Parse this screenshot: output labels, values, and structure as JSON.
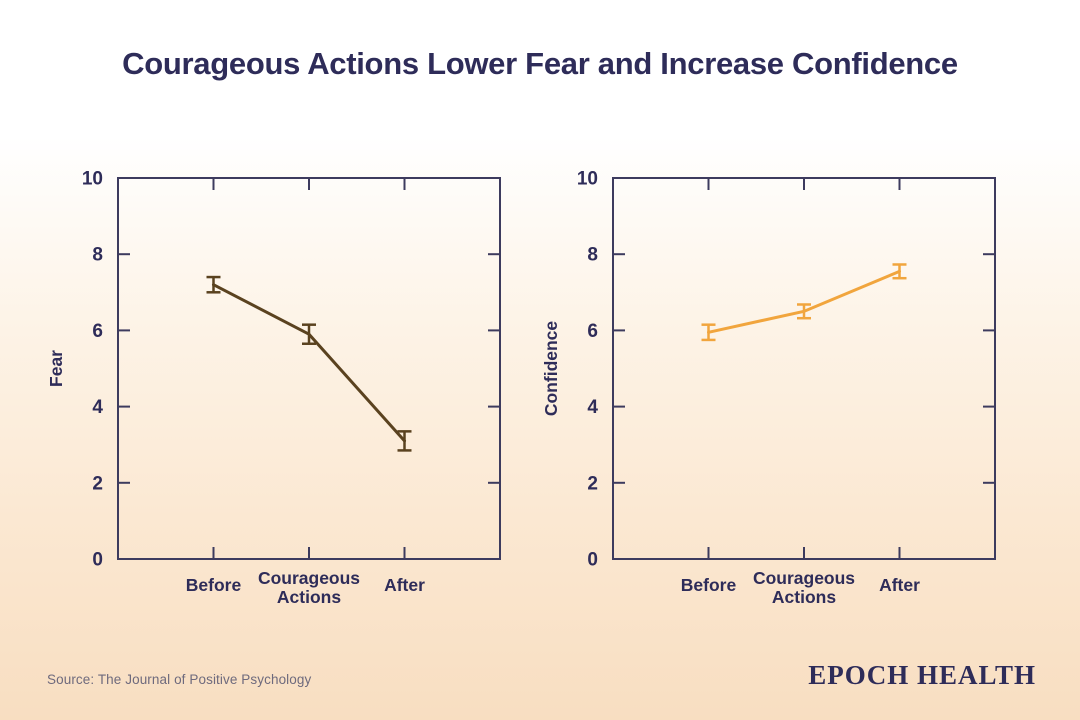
{
  "page": {
    "title": "Courageous Actions Lower Fear and Increase Confidence",
    "source": "Source: The Journal of Positive Psychology",
    "brand": "EPOCH HEALTH"
  },
  "colors": {
    "title_text": "#2e2c59",
    "axis": "#3d3b5e",
    "tick_label": "#2e2c59",
    "source_text": "#6e6a7d",
    "brand_text": "#2e2c59",
    "fear_line": "#5a421f",
    "confidence_line": "#f1a53d",
    "background_top": "#ffffff",
    "background_bottom": "#f8dec1"
  },
  "chart_data": [
    {
      "type": "line",
      "title": "",
      "xlabel": "",
      "ylabel": "Fear",
      "categories": [
        "Before",
        "Courageous Actions",
        "After"
      ],
      "series": [
        {
          "name": "Fear",
          "color": "#5a421f",
          "values": [
            7.2,
            5.9,
            3.1
          ],
          "errors": [
            0.2,
            0.25,
            0.25
          ]
        }
      ],
      "ylim": [
        0,
        10
      ],
      "yticks": [
        0,
        2,
        4,
        6,
        8,
        10
      ],
      "grid": false,
      "legend_position": "none",
      "error_bars": true
    },
    {
      "type": "line",
      "title": "",
      "xlabel": "",
      "ylabel": "Confidence",
      "categories": [
        "Before",
        "Courageous Actions",
        "After"
      ],
      "series": [
        {
          "name": "Confidence",
          "color": "#f1a53d",
          "values": [
            5.95,
            6.5,
            7.55
          ],
          "errors": [
            0.2,
            0.18,
            0.18
          ]
        }
      ],
      "ylim": [
        0,
        10
      ],
      "yticks": [
        0,
        2,
        4,
        6,
        8,
        10
      ],
      "grid": false,
      "legend_position": "none",
      "error_bars": true
    }
  ]
}
